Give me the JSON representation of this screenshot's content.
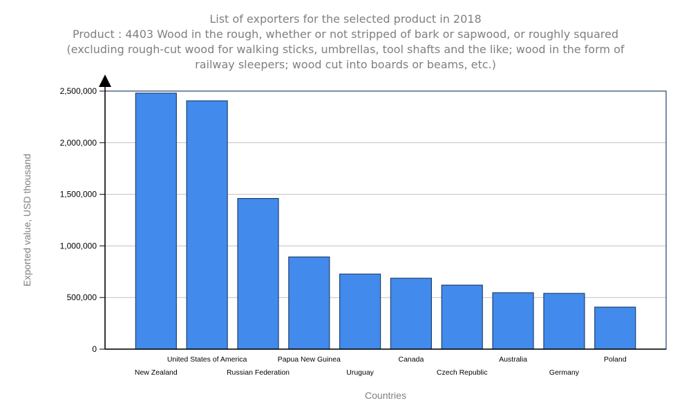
{
  "chart_data": {
    "type": "bar",
    "title_lines": [
      "List of exporters for the selected product in 2018",
      "Product : 4403 Wood in the rough, whether or not stripped of bark or sapwood, or roughly squared",
      "(excluding rough-cut wood for walking sticks, umbrellas, tool shafts and the like; wood in the form of",
      "railway sleepers; wood cut into boards or beams, etc.)"
    ],
    "xlabel": "Countries",
    "ylabel": "Exported value, USD thousand",
    "ylim": [
      0,
      2500000
    ],
    "yticks": [
      0,
      500000,
      1000000,
      1500000,
      2000000,
      2500000
    ],
    "ytick_labels": [
      "0",
      "500,000",
      "1,000,000",
      "1,500,000",
      "2,000,000",
      "2,500,000"
    ],
    "grid": true,
    "categories": [
      "New Zealand",
      "United States of America",
      "Russian Federation",
      "Papua New Guinea",
      "Uruguay",
      "Canada",
      "Czech Republic",
      "Australia",
      "Germany",
      "Poland"
    ],
    "values": [
      2480000,
      2406000,
      1460000,
      893000,
      727000,
      687000,
      620000,
      547000,
      540000,
      407000
    ],
    "colors": {
      "bar": "#428bed",
      "bar_border": "#1f3f6e",
      "grid": "#c0c0c0",
      "frame": "#1f3f6e",
      "title": "#7f7f7f"
    }
  }
}
